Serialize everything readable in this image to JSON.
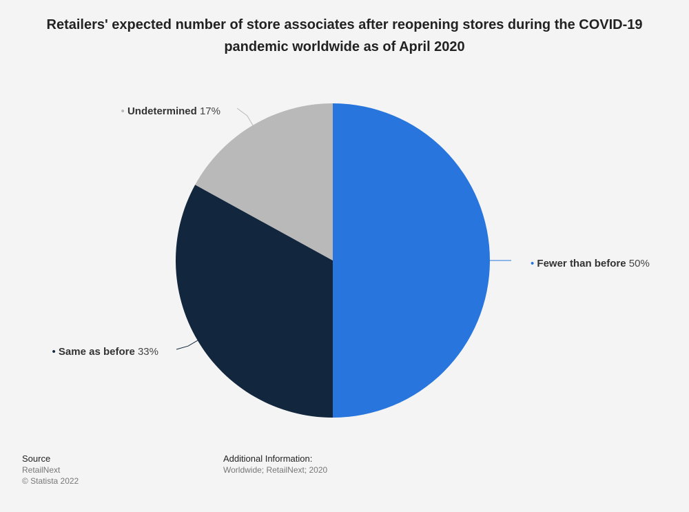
{
  "chart_data": {
    "type": "pie",
    "title": "Retailers' expected number of store associates after reopening stores during the COVID-19 pandemic worldwide as of April 2020",
    "categories": [
      "Fewer than before",
      "Same as before",
      "Undetermined"
    ],
    "values": [
      50,
      33,
      17
    ],
    "value_labels": [
      "50%",
      "33%",
      "17%"
    ],
    "unit": "%",
    "colors": [
      "#2876dd",
      "#12263d",
      "#b9b9b9"
    ]
  },
  "footer": {
    "source_heading": "Source",
    "source_name": "RetailNext",
    "copyright": "© Statista 2022",
    "additional_heading": "Additional Information:",
    "additional_text": "Worldwide; RetailNext; 2020"
  }
}
